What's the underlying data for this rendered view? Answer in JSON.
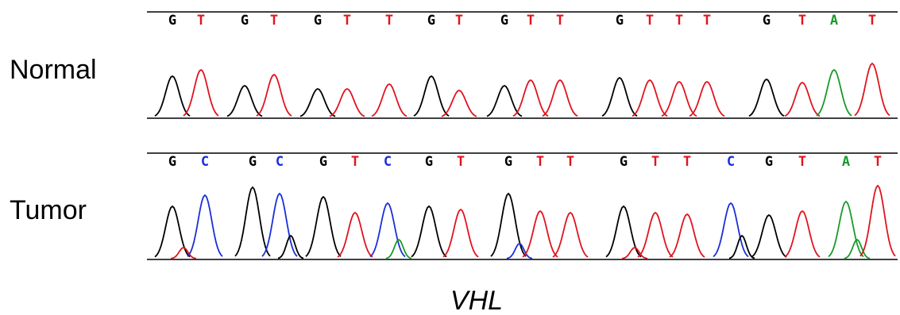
{
  "rows": [
    {
      "label": "Normal",
      "bases": [
        "G",
        "T",
        "G",
        "T",
        "G",
        "T",
        "T",
        "G",
        "T",
        "G",
        "T",
        "T",
        "G",
        "T",
        "T",
        "T",
        "G",
        "T",
        "A",
        "T"
      ]
    },
    {
      "label": "Tumor",
      "bases": [
        "G",
        "C",
        "G",
        "C",
        "G",
        "T",
        "C",
        "G",
        "T",
        "G",
        "T",
        "T",
        "G",
        "T",
        "T",
        "C",
        "G",
        "T",
        "A",
        "T"
      ]
    }
  ],
  "base_colors": {
    "G": "#000000",
    "T": "#e0141e",
    "C": "#1a2fd6",
    "A": "#1a9a2a"
  },
  "caption": "VHL"
}
